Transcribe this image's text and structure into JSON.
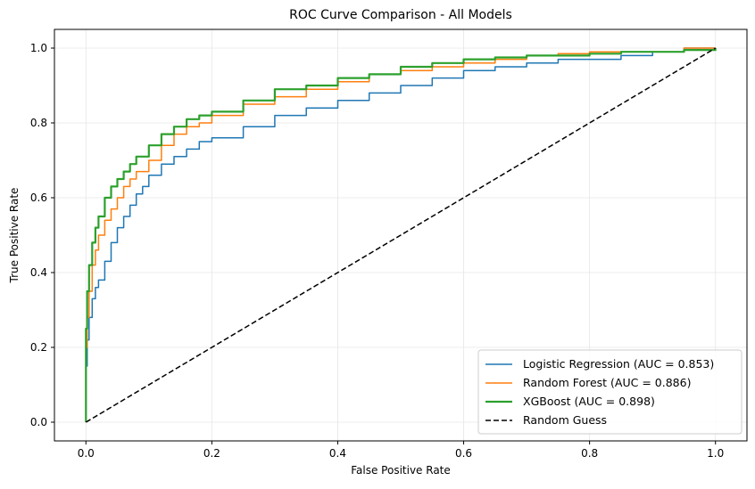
{
  "chart_data": {
    "type": "line",
    "title": "ROC Curve Comparison - All Models",
    "xlabel": "False Positive Rate",
    "ylabel": "True Positive Rate",
    "xlim": [
      -0.05,
      1.05
    ],
    "ylim": [
      -0.05,
      1.05
    ],
    "xticks": [
      0.0,
      0.2,
      0.4,
      0.6,
      0.8,
      1.0
    ],
    "yticks": [
      0.0,
      0.2,
      0.4,
      0.6,
      0.8,
      1.0
    ],
    "tick_labels_x": [
      "0.0",
      "0.2",
      "0.4",
      "0.6",
      "0.8",
      "1.0"
    ],
    "tick_labels_y": [
      "0.0",
      "0.2",
      "0.4",
      "0.6",
      "0.8",
      "1.0"
    ],
    "grid": true,
    "legend_position": "lower-right",
    "series": [
      {
        "name": "Logistic Regression (AUC = 0.853)",
        "color": "#1f77b4",
        "style": "solid",
        "points": [
          [
            0,
            0
          ],
          [
            0,
            0.15
          ],
          [
            0.002,
            0.22
          ],
          [
            0.005,
            0.28
          ],
          [
            0.01,
            0.33
          ],
          [
            0.015,
            0.36
          ],
          [
            0.02,
            0.38
          ],
          [
            0.03,
            0.43
          ],
          [
            0.04,
            0.48
          ],
          [
            0.05,
            0.52
          ],
          [
            0.06,
            0.55
          ],
          [
            0.07,
            0.58
          ],
          [
            0.08,
            0.61
          ],
          [
            0.09,
            0.63
          ],
          [
            0.1,
            0.66
          ],
          [
            0.12,
            0.69
          ],
          [
            0.14,
            0.71
          ],
          [
            0.16,
            0.73
          ],
          [
            0.18,
            0.75
          ],
          [
            0.2,
            0.76
          ],
          [
            0.25,
            0.79
          ],
          [
            0.3,
            0.82
          ],
          [
            0.35,
            0.84
          ],
          [
            0.4,
            0.86
          ],
          [
            0.45,
            0.88
          ],
          [
            0.5,
            0.9
          ],
          [
            0.55,
            0.92
          ],
          [
            0.6,
            0.94
          ],
          [
            0.65,
            0.95
          ],
          [
            0.7,
            0.96
          ],
          [
            0.75,
            0.97
          ],
          [
            0.8,
            0.97
          ],
          [
            0.85,
            0.98
          ],
          [
            0.9,
            0.99
          ],
          [
            0.95,
            1.0
          ],
          [
            1.0,
            1.0
          ]
        ]
      },
      {
        "name": "Random Forest (AUC = 0.886)",
        "color": "#ff7f0e",
        "style": "solid",
        "points": [
          [
            0,
            0
          ],
          [
            0,
            0.2
          ],
          [
            0.002,
            0.28
          ],
          [
            0.005,
            0.35
          ],
          [
            0.01,
            0.42
          ],
          [
            0.015,
            0.46
          ],
          [
            0.02,
            0.5
          ],
          [
            0.03,
            0.54
          ],
          [
            0.04,
            0.57
          ],
          [
            0.05,
            0.6
          ],
          [
            0.06,
            0.63
          ],
          [
            0.07,
            0.65
          ],
          [
            0.08,
            0.67
          ],
          [
            0.1,
            0.7
          ],
          [
            0.12,
            0.74
          ],
          [
            0.14,
            0.77
          ],
          [
            0.16,
            0.79
          ],
          [
            0.18,
            0.8
          ],
          [
            0.2,
            0.82
          ],
          [
            0.25,
            0.85
          ],
          [
            0.3,
            0.87
          ],
          [
            0.35,
            0.89
          ],
          [
            0.4,
            0.91
          ],
          [
            0.45,
            0.93
          ],
          [
            0.5,
            0.94
          ],
          [
            0.55,
            0.95
          ],
          [
            0.6,
            0.96
          ],
          [
            0.65,
            0.97
          ],
          [
            0.7,
            0.98
          ],
          [
            0.75,
            0.985
          ],
          [
            0.8,
            0.99
          ],
          [
            0.9,
            0.99
          ],
          [
            0.95,
            1.0
          ],
          [
            1.0,
            1.0
          ]
        ]
      },
      {
        "name": "XGBoost (AUC = 0.898)",
        "color": "#2ca02c",
        "style": "solid-thick",
        "points": [
          [
            0,
            0
          ],
          [
            0,
            0.25
          ],
          [
            0.002,
            0.35
          ],
          [
            0.005,
            0.42
          ],
          [
            0.01,
            0.48
          ],
          [
            0.015,
            0.52
          ],
          [
            0.02,
            0.55
          ],
          [
            0.03,
            0.6
          ],
          [
            0.04,
            0.63
          ],
          [
            0.05,
            0.65
          ],
          [
            0.06,
            0.67
          ],
          [
            0.07,
            0.69
          ],
          [
            0.08,
            0.71
          ],
          [
            0.1,
            0.74
          ],
          [
            0.12,
            0.77
          ],
          [
            0.14,
            0.79
          ],
          [
            0.16,
            0.81
          ],
          [
            0.18,
            0.82
          ],
          [
            0.2,
            0.83
          ],
          [
            0.25,
            0.86
          ],
          [
            0.3,
            0.89
          ],
          [
            0.35,
            0.9
          ],
          [
            0.4,
            0.92
          ],
          [
            0.45,
            0.93
          ],
          [
            0.5,
            0.95
          ],
          [
            0.55,
            0.96
          ],
          [
            0.6,
            0.97
          ],
          [
            0.65,
            0.975
          ],
          [
            0.7,
            0.98
          ],
          [
            0.75,
            0.98
          ],
          [
            0.8,
            0.985
          ],
          [
            0.85,
            0.99
          ],
          [
            0.9,
            0.99
          ],
          [
            0.95,
            0.995
          ],
          [
            1.0,
            1.0
          ]
        ]
      },
      {
        "name": "Random Guess",
        "color": "#000000",
        "style": "dashed",
        "points": [
          [
            0,
            0
          ],
          [
            1,
            1
          ]
        ]
      }
    ]
  }
}
